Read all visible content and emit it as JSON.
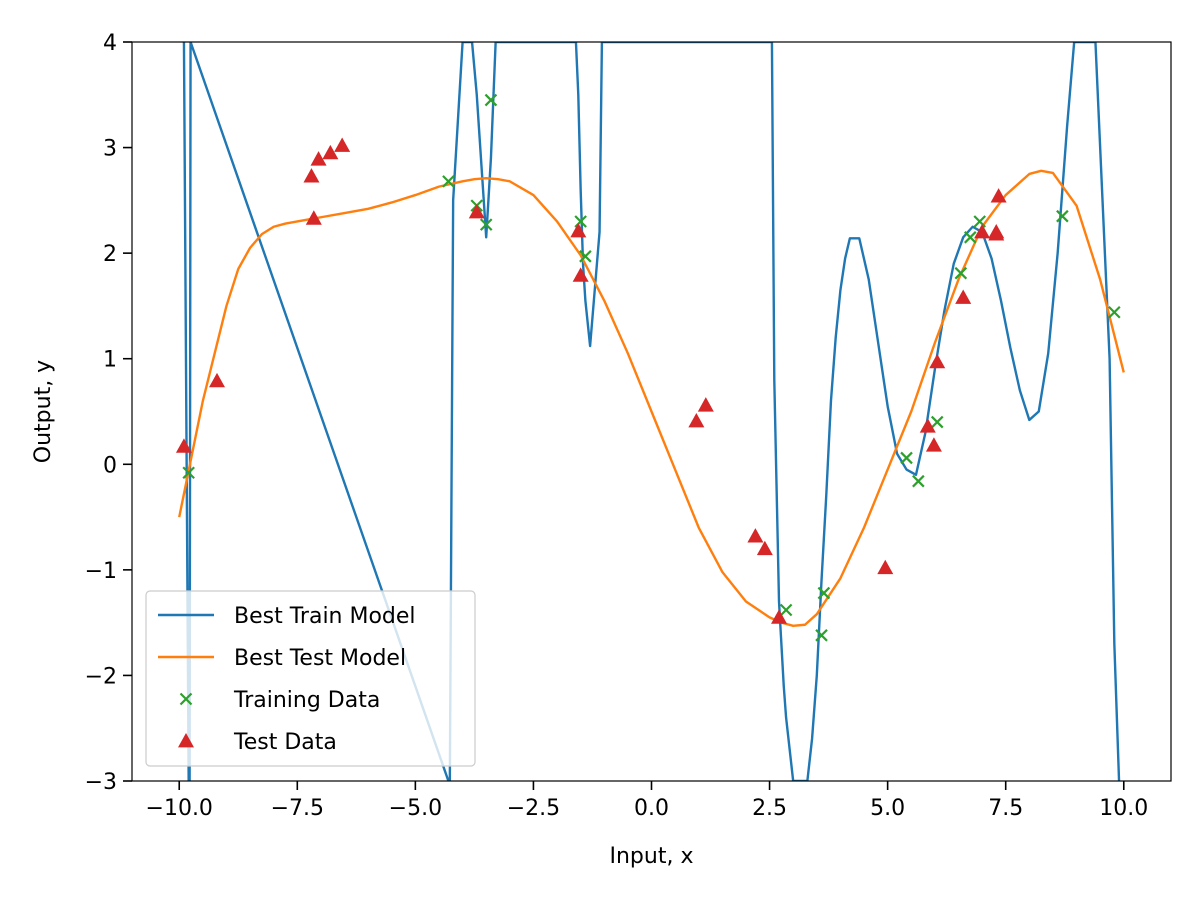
{
  "chart_data": {
    "type": "line",
    "xlabel": "Input, x",
    "ylabel": "Output, y",
    "xlim": [
      -11.0,
      11.0
    ],
    "ylim": [
      -3,
      4
    ],
    "xticks": [
      -10.0,
      -7.5,
      -5.0,
      -2.5,
      0.0,
      2.5,
      5.0,
      7.5,
      10.0
    ],
    "xtick_labels": [
      "−10.0",
      "−7.5",
      "−5.0",
      "−2.5",
      "0.0",
      "2.5",
      "5.0",
      "7.5",
      "10.0"
    ],
    "yticks": [
      -3,
      -2,
      -1,
      0,
      1,
      2,
      3,
      4
    ],
    "ytick_labels": [
      "−3",
      "−2",
      "−1",
      "0",
      "1",
      "2",
      "3",
      "4"
    ],
    "grid": false,
    "legend_position": "lower-left",
    "series": [
      {
        "name": "Best Train Model",
        "kind": "line",
        "color": "#1f77b4",
        "x": [
          -9.9,
          -9.8,
          -9.78,
          -9.76,
          -4.3,
          -4.27,
          -4.2,
          -4.0,
          -3.8,
          -3.7,
          -3.5,
          -3.4,
          -3.3,
          -3.25,
          -1.6,
          -1.55,
          -1.5,
          -1.45,
          -1.4,
          -1.3,
          -1.1,
          -1.05,
          2.55,
          2.6,
          2.7,
          2.8,
          2.85,
          2.95,
          3.0,
          3.3,
          3.4,
          3.5,
          3.6,
          3.7,
          3.8,
          3.9,
          4.0,
          4.1,
          4.2,
          4.4,
          4.6,
          4.8,
          5.0,
          5.2,
          5.4,
          5.6,
          5.8,
          6.0,
          6.2,
          6.4,
          6.6,
          6.8,
          7.0,
          7.2,
          7.4,
          7.6,
          7.8,
          8.0,
          8.2,
          8.4,
          8.6,
          8.8,
          8.95,
          9.4,
          9.7,
          9.8,
          9.9
        ],
        "y": [
          4.0,
          -3.0,
          -3.0,
          4.0,
          -3.0,
          -3.0,
          2.5,
          4.0,
          4.0,
          3.5,
          2.15,
          2.9,
          4.0,
          4.0,
          4.0,
          3.5,
          2.6,
          1.9,
          1.55,
          1.12,
          2.2,
          4.0,
          4.0,
          0.8,
          -1.3,
          -2.1,
          -2.4,
          -2.8,
          -3.0,
          -3.0,
          -2.6,
          -2.0,
          -1.1,
          -0.3,
          0.6,
          1.2,
          1.65,
          1.95,
          2.14,
          2.14,
          1.75,
          1.15,
          0.55,
          0.1,
          -0.05,
          -0.1,
          0.3,
          0.9,
          1.45,
          1.9,
          2.15,
          2.25,
          2.2,
          1.95,
          1.55,
          1.1,
          0.7,
          0.42,
          0.5,
          1.05,
          2.0,
          3.2,
          4.0,
          4.0,
          1.0,
          -1.7,
          -3.0
        ]
      },
      {
        "name": "Best Test Model",
        "kind": "line",
        "color": "#ff7f0e",
        "x": [
          -10.0,
          -9.75,
          -9.5,
          -9.25,
          -9.0,
          -8.75,
          -8.5,
          -8.25,
          -8.0,
          -7.75,
          -7.5,
          -7.25,
          -7.0,
          -6.5,
          -6.0,
          -5.5,
          -5.0,
          -4.5,
          -4.0,
          -3.75,
          -3.5,
          -3.25,
          -3.0,
          -2.5,
          -2.0,
          -1.5,
          -1.0,
          -0.5,
          0.0,
          0.5,
          1.0,
          1.5,
          2.0,
          2.5,
          2.75,
          3.0,
          3.25,
          3.5,
          4.0,
          4.5,
          5.0,
          5.5,
          6.0,
          6.5,
          7.0,
          7.5,
          8.0,
          8.25,
          8.5,
          9.0,
          9.5,
          10.0
        ],
        "y": [
          -0.5,
          0.05,
          0.6,
          1.05,
          1.5,
          1.85,
          2.05,
          2.18,
          2.25,
          2.28,
          2.3,
          2.32,
          2.34,
          2.38,
          2.42,
          2.48,
          2.55,
          2.63,
          2.68,
          2.7,
          2.71,
          2.7,
          2.68,
          2.55,
          2.3,
          1.98,
          1.55,
          1.05,
          0.5,
          -0.05,
          -0.6,
          -1.02,
          -1.3,
          -1.45,
          -1.5,
          -1.53,
          -1.52,
          -1.42,
          -1.08,
          -0.6,
          -0.05,
          0.5,
          1.15,
          1.75,
          2.25,
          2.55,
          2.75,
          2.78,
          2.76,
          2.45,
          1.75,
          0.87
        ]
      },
      {
        "name": "Training Data",
        "kind": "scatter",
        "marker": "x",
        "color": "#2ca02c",
        "x": [
          -9.8,
          -4.3,
          -3.7,
          -3.5,
          -3.4,
          -1.5,
          -1.4,
          2.85,
          3.6,
          3.65,
          5.4,
          5.65,
          6.05,
          6.55,
          6.75,
          6.95,
          8.7,
          9.8
        ],
        "y": [
          -0.08,
          2.68,
          2.45,
          2.27,
          3.45,
          2.3,
          1.97,
          -1.38,
          -1.62,
          -1.22,
          0.06,
          -0.16,
          0.4,
          1.81,
          2.15,
          2.3,
          2.35,
          1.44
        ]
      },
      {
        "name": "Test Data",
        "kind": "scatter",
        "marker": "triangle",
        "color": "#d62728",
        "x": [
          -9.9,
          -9.2,
          -7.2,
          -7.15,
          -7.05,
          -6.8,
          -6.55,
          -3.7,
          -1.55,
          -1.5,
          0.95,
          1.15,
          2.2,
          2.4,
          2.7,
          4.95,
          5.85,
          5.98,
          6.05,
          6.6,
          7.0,
          7.3,
          7.35,
          7.3
        ],
        "y": [
          0.17,
          0.79,
          2.73,
          2.33,
          2.89,
          2.95,
          3.02,
          2.39,
          2.21,
          1.79,
          0.41,
          0.56,
          -0.68,
          -0.8,
          -1.45,
          -0.98,
          0.36,
          0.18,
          0.97,
          1.58,
          2.2,
          2.18,
          2.54,
          2.2
        ]
      }
    ]
  }
}
